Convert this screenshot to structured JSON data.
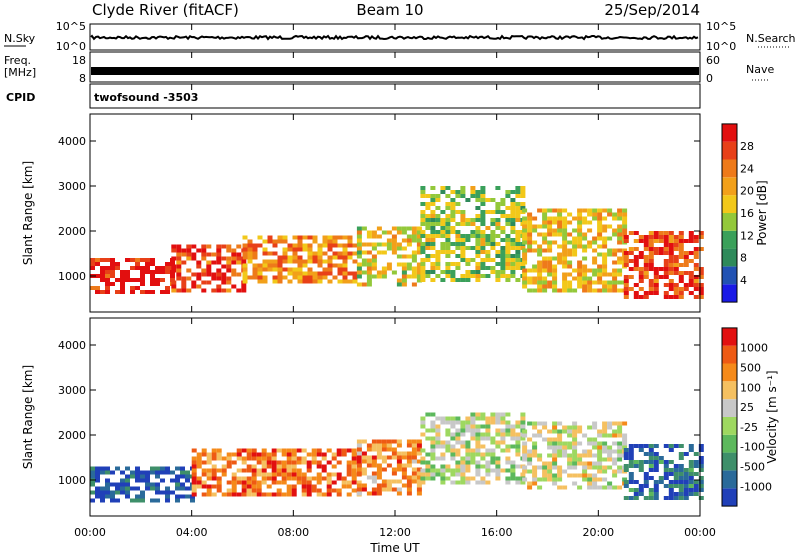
{
  "header": {
    "station": "Clyde River (fitACF)",
    "beam": "Beam 10",
    "date": "25/Sep/2014"
  },
  "summary_panel": {
    "left_labels": [
      "N.Sky",
      "Freq.",
      "[MHz]",
      "CPID"
    ],
    "right_labels": [
      "N.Search",
      "Nave"
    ],
    "nsky_ticks": [
      "10^5",
      "10^0"
    ],
    "nsearch_ticks": [
      "10^5",
      "10^0"
    ],
    "freq_ticks": [
      "18",
      "8"
    ],
    "nave_ticks": [
      "60",
      "0"
    ],
    "cpid_text": "twofsound -3503"
  },
  "chart_data": [
    {
      "type": "heatmap",
      "name": "power",
      "xlabel": "",
      "ylabel": "Slant Range [km]",
      "xlim": [
        0,
        24
      ],
      "ylim": [
        200,
        4600
      ],
      "yticks": [
        "1000",
        "2000",
        "3000",
        "4000"
      ],
      "colorbar": {
        "label": "Power [dB]",
        "ticks": [
          "4",
          "8",
          "12",
          "16",
          "20",
          "24",
          "28"
        ],
        "colors": [
          "#1a1ae6",
          "#2152b3",
          "#2e8a5a",
          "#3aa05a",
          "#93c83a",
          "#f2c81a",
          "#f2a01a",
          "#ee7a1a",
          "#e84018",
          "#e20f0f"
        ]
      },
      "bands": [
        {
          "t0": 0.0,
          "t1": 3.2,
          "r0": 600,
          "r1": 1400,
          "level": 0.95
        },
        {
          "t0": 3.2,
          "t1": 6.0,
          "r0": 700,
          "r1": 1700,
          "level": 0.85
        },
        {
          "t0": 6.0,
          "t1": 10.5,
          "r0": 900,
          "r1": 1900,
          "level": 0.7
        },
        {
          "t0": 10.5,
          "t1": 13.0,
          "r0": 800,
          "r1": 2100,
          "level": 0.55
        },
        {
          "t0": 13.0,
          "t1": 17.0,
          "r0": 900,
          "r1": 3000,
          "level": 0.45
        },
        {
          "t0": 17.0,
          "t1": 21.0,
          "r0": 700,
          "r1": 2500,
          "level": 0.6
        },
        {
          "t0": 21.0,
          "t1": 24.0,
          "r0": 500,
          "r1": 2000,
          "level": 0.85
        }
      ]
    },
    {
      "type": "heatmap",
      "name": "velocity",
      "xlabel": "Time UT",
      "ylabel": "Slant Range [km]",
      "xlim": [
        0,
        24
      ],
      "ylim": [
        200,
        4600
      ],
      "xticks": [
        "00:00",
        "04:00",
        "08:00",
        "12:00",
        "16:00",
        "20:00",
        "00:00"
      ],
      "yticks": [
        "1000",
        "2000",
        "3000",
        "4000"
      ],
      "colorbar": {
        "label": "Velocity [m s⁻¹]",
        "ticks": [
          "1000",
          "500",
          "100",
          "25",
          "-25",
          "-100",
          "-500",
          "-1000"
        ],
        "colors": [
          "#2040b8",
          "#2a6a9a",
          "#3e8f6a",
          "#5cb85c",
          "#9ed860",
          "#c8c8c8",
          "#f5c060",
          "#f58a1a",
          "#ee5a14",
          "#e21010"
        ]
      },
      "bands": [
        {
          "t0": 0.0,
          "t1": 4.0,
          "r0": 500,
          "r1": 1300,
          "level": 0.1
        },
        {
          "t0": 4.0,
          "t1": 10.5,
          "r0": 700,
          "r1": 1700,
          "level": 0.8
        },
        {
          "t0": 10.5,
          "t1": 13.0,
          "r0": 700,
          "r1": 1900,
          "level": 0.75
        },
        {
          "t0": 13.0,
          "t1": 17.0,
          "r0": 900,
          "r1": 2500,
          "level": 0.5
        },
        {
          "t0": 17.0,
          "t1": 21.0,
          "r0": 800,
          "r1": 2300,
          "level": 0.55
        },
        {
          "t0": 21.0,
          "t1": 24.0,
          "r0": 600,
          "r1": 1800,
          "level": 0.15
        }
      ]
    }
  ]
}
